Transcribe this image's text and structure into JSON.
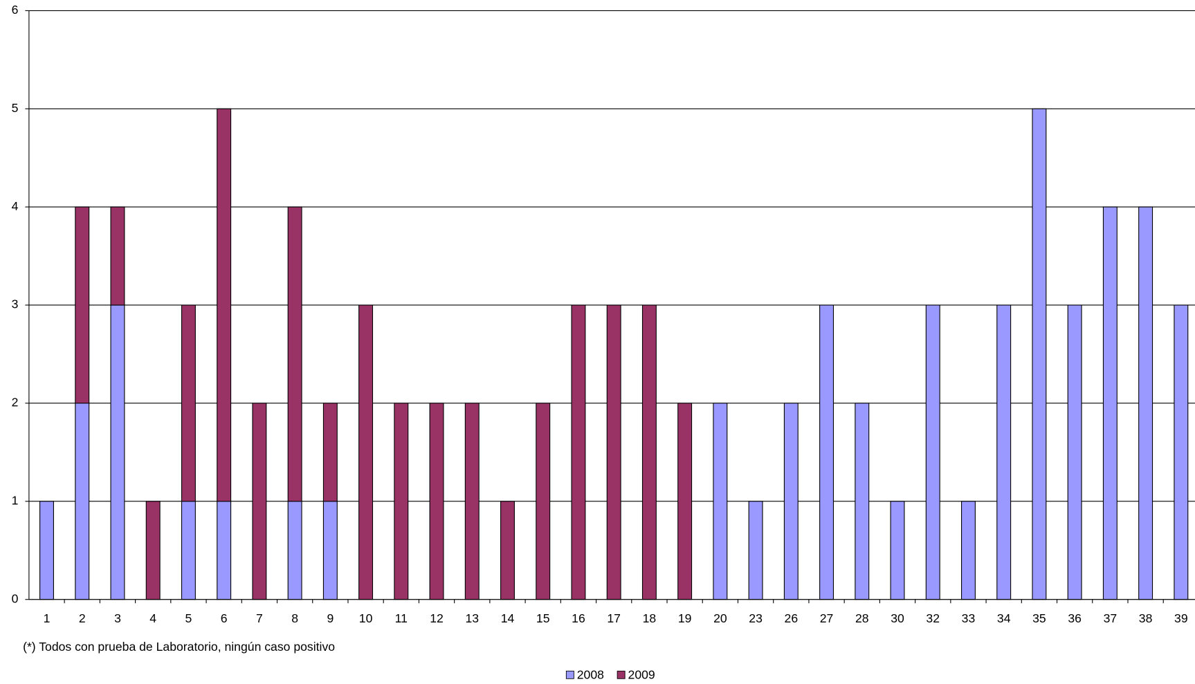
{
  "chart_data": {
    "type": "stacked_bar",
    "categories": [
      "1",
      "2",
      "3",
      "4",
      "5",
      "6",
      "7",
      "8",
      "9",
      "10",
      "11",
      "12",
      "13",
      "14",
      "15",
      "16",
      "17",
      "18",
      "19",
      "20",
      "23",
      "26",
      "27",
      "28",
      "30",
      "32",
      "33",
      "34",
      "35",
      "36",
      "37",
      "38",
      "39"
    ],
    "series": [
      {
        "name": "2008",
        "color": "#9999ff",
        "values": [
          1,
          2,
          3,
          0,
          1,
          1,
          0,
          1,
          1,
          0,
          0,
          0,
          0,
          0,
          0,
          0,
          0,
          0,
          0,
          2,
          1,
          2,
          3,
          2,
          1,
          3,
          1,
          3,
          5,
          3,
          4,
          4,
          3
        ]
      },
      {
        "name": "2009",
        "color": "#993366",
        "values": [
          0,
          2,
          1,
          1,
          2,
          4,
          2,
          3,
          1,
          3,
          2,
          2,
          2,
          1,
          2,
          3,
          3,
          3,
          2,
          0,
          0,
          0,
          0,
          0,
          0,
          0,
          0,
          0,
          0,
          0,
          0,
          0,
          0
        ]
      }
    ],
    "ylim": [
      0,
      6
    ],
    "yticks": [
      0,
      1,
      2,
      3,
      4,
      5,
      6
    ],
    "grid": true,
    "note": "(*) Todos con prueba de Laboratorio, ningún caso positivo",
    "legend": "bottom"
  }
}
